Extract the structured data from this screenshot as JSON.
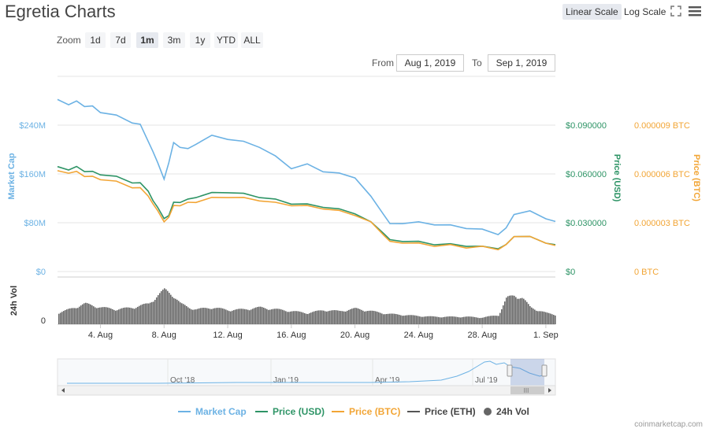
{
  "title": "Egretia Charts",
  "scale": {
    "linear": "Linear Scale",
    "log": "Log Scale"
  },
  "zoom": {
    "label": "Zoom",
    "buttons": [
      "1d",
      "7d",
      "1m",
      "3m",
      "1y",
      "YTD",
      "ALL"
    ],
    "active": "1m"
  },
  "range": {
    "from_label": "From",
    "from_value": "Aug 1, 2019",
    "to_label": "To",
    "to_value": "Sep 1, 2019"
  },
  "colors": {
    "market_cap": "#6cb2e4",
    "price_usd": "#2e9466",
    "price_btc": "#f2a535",
    "price_eth": "#555555",
    "volume": "#666666"
  },
  "chart_data": {
    "type": "line",
    "x_ticks": [
      "4. Aug",
      "8. Aug",
      "12. Aug",
      "16. Aug",
      "20. Aug",
      "24. Aug",
      "28. Aug",
      "1. Sep"
    ],
    "x_tick_days": [
      4,
      8,
      12,
      16,
      20,
      24,
      28,
      32
    ],
    "xlim": [
      1.3,
      32.6
    ],
    "left_axis": {
      "label": "Market Cap",
      "ticks": [
        "$0",
        "$80M",
        "$160M",
        "$240M"
      ],
      "ylim": [
        0,
        320
      ]
    },
    "usd_axis": {
      "label": "Price (USD)",
      "ticks": [
        "$0",
        "$0.030000",
        "$0.060000",
        "$0.090000"
      ]
    },
    "btc_axis": {
      "label": "Price (BTC)",
      "ticks": [
        "0 BTC",
        "0.000003 BTC",
        "0.000006 BTC",
        "0.000009 BTC"
      ]
    },
    "series": [
      {
        "name": "Market Cap",
        "unit": "M USD",
        "x": [
          1.3,
          2,
          2.5,
          3,
          3.5,
          4,
          5,
          6,
          6.5,
          7,
          7.3,
          7.6,
          8,
          8.3,
          8.6,
          9,
          9.5,
          10,
          11,
          12,
          13,
          14,
          15,
          16,
          17,
          18,
          19,
          20,
          21,
          21.8,
          22.2,
          23,
          24,
          25,
          26,
          27,
          28,
          29,
          29.5,
          30,
          31,
          32,
          32.6
        ],
        "values": [
          282,
          275,
          278,
          272,
          270,
          262,
          255,
          245,
          240,
          215,
          195,
          180,
          150,
          180,
          210,
          205,
          200,
          210,
          222,
          218,
          212,
          205,
          188,
          170,
          175,
          165,
          160,
          155,
          122,
          95,
          77,
          80,
          80,
          78,
          75,
          72,
          68,
          62,
          70,
          95,
          98,
          88,
          82
        ]
      },
      {
        "name": "Price (USD)",
        "unit": "USD",
        "x": [
          1.3,
          2,
          2.5,
          3,
          3.5,
          4,
          5,
          6,
          6.5,
          7,
          7.3,
          7.6,
          8,
          8.3,
          8.6,
          9,
          9.5,
          10,
          11,
          12,
          13,
          14,
          15,
          16,
          17,
          18,
          19,
          20,
          21,
          21.8,
          22.2,
          23,
          24,
          25,
          26,
          27,
          28,
          29,
          29.5,
          30,
          31,
          32,
          32.6
        ],
        "values": [
          0.0645,
          0.063,
          0.064,
          0.062,
          0.061,
          0.06,
          0.058,
          0.055,
          0.054,
          0.05,
          0.043,
          0.04,
          0.032,
          0.035,
          0.042,
          0.043,
          0.044,
          0.046,
          0.048,
          0.049,
          0.0475,
          0.046,
          0.044,
          0.042,
          0.041,
          0.04,
          0.038,
          0.036,
          0.03,
          0.024,
          0.019,
          0.019,
          0.018,
          0.017,
          0.0165,
          0.016,
          0.015,
          0.0145,
          0.016,
          0.022,
          0.021,
          0.018,
          0.0165
        ]
      },
      {
        "name": "Price (BTC)",
        "unit": "BTC",
        "x": [
          1.3,
          2,
          2.5,
          3,
          3.5,
          4,
          5,
          6,
          6.5,
          7,
          7.3,
          7.6,
          8,
          8.3,
          8.6,
          9,
          9.5,
          10,
          11,
          12,
          13,
          14,
          15,
          16,
          17,
          18,
          19,
          20,
          21,
          21.8,
          22.2,
          23,
          24,
          25,
          26,
          27,
          28,
          29,
          29.5,
          30,
          31,
          32,
          32.6
        ],
        "values": [
          6.2e-06,
          6.1e-06,
          6.1e-06,
          5.9e-06,
          5.8e-06,
          5.7e-06,
          5.5e-06,
          5.2e-06,
          5.1e-06,
          4.7e-06,
          4.1e-06,
          3.8e-06,
          3e-06,
          3.4e-06,
          4e-06,
          4.1e-06,
          4.2e-06,
          4.3e-06,
          4.5e-06,
          4.6e-06,
          4.5e-06,
          4.4e-06,
          4.2e-06,
          4.1e-06,
          4e-06,
          3.9e-06,
          3.7e-06,
          3.5e-06,
          3e-06,
          2.3e-06,
          1.8e-06,
          1.8e-06,
          1.7e-06,
          1.6e-06,
          1.6e-06,
          1.5e-06,
          1.5e-06,
          1.4e-06,
          1.6e-06,
          2.2e-06,
          2.1e-06,
          1.8e-06,
          1.6e-06
        ]
      }
    ],
    "volume": {
      "name": "24h Vol",
      "axis_ticks": [
        "0"
      ],
      "x": [
        1.3,
        2,
        3,
        4,
        5,
        6,
        7,
        7.5,
        8,
        8.5,
        9,
        9.5,
        10,
        11,
        12,
        13,
        14,
        15,
        16,
        17,
        18,
        19,
        20,
        21,
        22,
        23,
        24,
        25,
        26,
        27,
        28,
        29,
        29.5,
        30,
        30.5,
        31,
        32,
        32.6
      ],
      "values": [
        0.3,
        0.4,
        0.55,
        0.45,
        0.4,
        0.45,
        0.55,
        0.75,
        0.92,
        0.8,
        0.55,
        0.45,
        0.4,
        0.45,
        0.38,
        0.4,
        0.45,
        0.4,
        0.35,
        0.3,
        0.38,
        0.35,
        0.42,
        0.35,
        0.28,
        0.25,
        0.22,
        0.2,
        0.2,
        0.2,
        0.18,
        0.25,
        0.7,
        0.78,
        0.7,
        0.45,
        0.3,
        0.25
      ]
    }
  },
  "navigator": {
    "labels": [
      "Oct '18",
      "Jan '19",
      "Apr '19",
      "Jul '19"
    ]
  },
  "legend": [
    "Market Cap",
    "Price (USD)",
    "Price (BTC)",
    "Price (ETH)",
    "24h Vol"
  ],
  "credit": "coinmarketcap.com"
}
